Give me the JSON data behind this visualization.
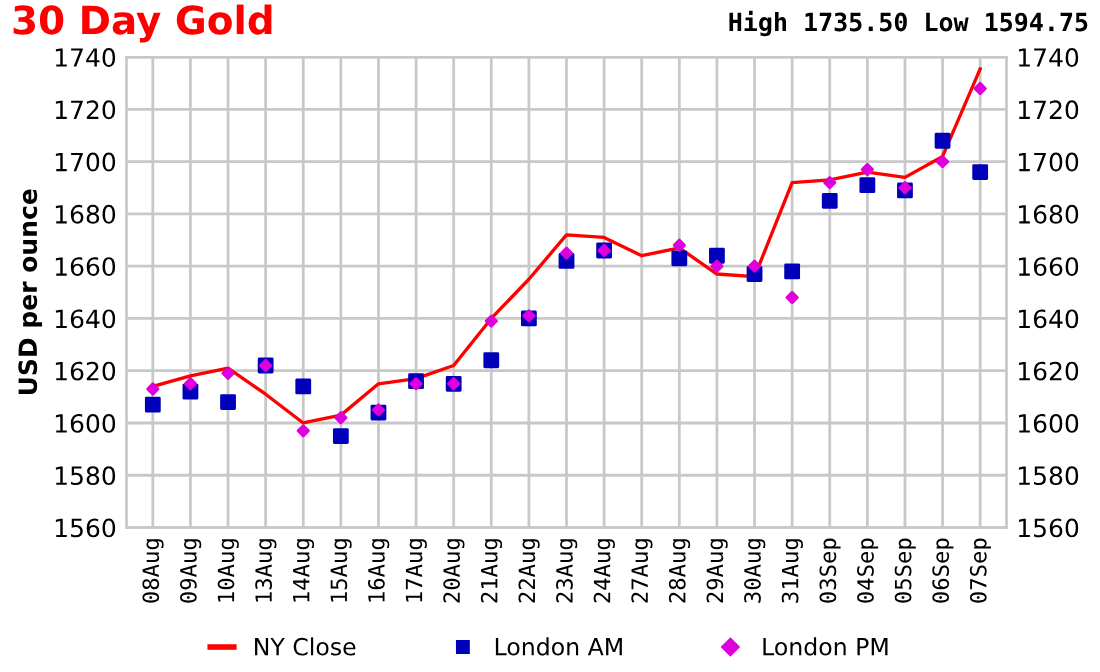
{
  "chart_data": {
    "type": "line",
    "title": "30 Day Gold",
    "subtitle": "High 1735.50 Low 1594.75",
    "ylabel": "USD per ounce",
    "categories": [
      "08Aug",
      "09Aug",
      "10Aug",
      "13Aug",
      "14Aug",
      "15Aug",
      "16Aug",
      "17Aug",
      "20Aug",
      "21Aug",
      "22Aug",
      "23Aug",
      "24Aug",
      "27Aug",
      "28Aug",
      "29Aug",
      "30Aug",
      "31Aug",
      "03Sep",
      "04Sep",
      "05Sep",
      "06Sep",
      "07Sep"
    ],
    "series": [
      {
        "name": "NY Close",
        "color": "#ff0000",
        "marker": "none",
        "values": [
          1614,
          1618,
          1621,
          1611,
          1600,
          1603,
          1615,
          1617,
          1622,
          1640,
          1655,
          1672,
          1671,
          1664,
          1667,
          1657,
          1656,
          1692,
          1693,
          1696,
          1694,
          1702,
          1735.5
        ]
      },
      {
        "name": "London AM",
        "type": "scatter",
        "color": "#0000bb",
        "marker": "square",
        "values": [
          1607,
          1612,
          1608,
          1622,
          1614,
          1595,
          1604,
          1616,
          1615,
          1624,
          1640,
          1662,
          1666,
          null,
          1663,
          1664,
          1657,
          1658,
          1685,
          1691,
          1689,
          1708,
          1696
        ]
      },
      {
        "name": "London PM",
        "type": "scatter",
        "color": "#dd00dd",
        "marker": "diamond",
        "values": [
          1613,
          1615,
          1619,
          1622,
          1597,
          1602,
          1605,
          1615,
          1615,
          1639,
          1641,
          1665,
          1666,
          null,
          1668,
          1660,
          1660,
          1648,
          1692,
          1697,
          1690,
          1700,
          1728
        ]
      }
    ],
    "ylim": [
      1560,
      1740
    ],
    "yticks": [
      1560,
      1580,
      1600,
      1620,
      1640,
      1660,
      1680,
      1700,
      1720,
      1740
    ],
    "y2lim": [
      1560,
      1740
    ],
    "y2ticks": [
      1560,
      1580,
      1600,
      1620,
      1640,
      1660,
      1680,
      1700,
      1720,
      1740
    ],
    "grid": true,
    "legend": "bottom"
  }
}
